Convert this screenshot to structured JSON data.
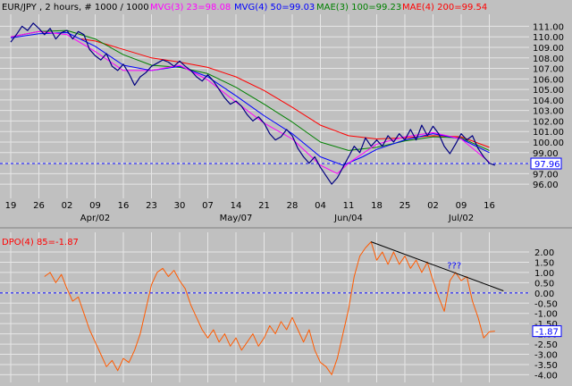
{
  "chart_data": [
    {
      "type": "line",
      "header": {
        "symbol": "EUR/JPY , 2 hours, # 1000 / 1000",
        "indicators": [
          {
            "label": "MVG(3) 23=98.08",
            "color": "#ff00ff"
          },
          {
            "label": "MVG(4) 50=99.03",
            "color": "#0000ff"
          },
          {
            "label": "MAE(3) 100=99.23",
            "color": "#008000"
          },
          {
            "label": "MAE(4) 200=99.54",
            "color": "#ff0000"
          }
        ]
      },
      "ylim": [
        95.5,
        111.8
      ],
      "y_ticks": [
        "96.00",
        "97.00",
        "98.00",
        "99.00",
        "100.00",
        "101.00",
        "102.00",
        "103.00",
        "104.00",
        "105.00",
        "106.00",
        "107.00",
        "108.00",
        "109.00",
        "110.00",
        "111.00"
      ],
      "last_value": "97.96",
      "last_value_num": 97.96,
      "x_ticks": [
        "19",
        "26",
        "02",
        "09",
        "16",
        "23",
        "30",
        "07",
        "14",
        "21",
        "28",
        "04",
        "11",
        "18",
        "25",
        "02",
        "09",
        "16"
      ],
      "month_labels": [
        {
          "label": "Apr/02",
          "at": 3
        },
        {
          "label": "May/07",
          "at": 8
        },
        {
          "label": "Jun/04",
          "at": 12
        },
        {
          "label": "Jul/02",
          "at": 16
        }
      ],
      "price_points": [
        [
          0,
          109.5
        ],
        [
          0.2,
          110.2
        ],
        [
          0.4,
          111.0
        ],
        [
          0.6,
          110.6
        ],
        [
          0.8,
          111.3
        ],
        [
          1.0,
          110.8
        ],
        [
          1.2,
          110.2
        ],
        [
          1.4,
          110.8
        ],
        [
          1.6,
          109.8
        ],
        [
          1.8,
          110.4
        ],
        [
          2.0,
          110.6
        ],
        [
          2.2,
          109.8
        ],
        [
          2.4,
          110.5
        ],
        [
          2.6,
          110.2
        ],
        [
          2.8,
          108.8
        ],
        [
          3.0,
          108.2
        ],
        [
          3.2,
          107.8
        ],
        [
          3.4,
          108.4
        ],
        [
          3.6,
          107.2
        ],
        [
          3.8,
          106.8
        ],
        [
          4.0,
          107.4
        ],
        [
          4.2,
          106.5
        ],
        [
          4.4,
          105.4
        ],
        [
          4.6,
          106.2
        ],
        [
          4.8,
          106.6
        ],
        [
          5.0,
          107.2
        ],
        [
          5.2,
          107.5
        ],
        [
          5.4,
          107.8
        ],
        [
          5.6,
          107.6
        ],
        [
          5.8,
          107.2
        ],
        [
          6.0,
          107.7
        ],
        [
          6.2,
          107.2
        ],
        [
          6.4,
          106.8
        ],
        [
          6.6,
          106.2
        ],
        [
          6.8,
          105.8
        ],
        [
          7.0,
          106.4
        ],
        [
          7.2,
          105.8
        ],
        [
          7.4,
          105.0
        ],
        [
          7.6,
          104.2
        ],
        [
          7.8,
          103.6
        ],
        [
          8.0,
          103.9
        ],
        [
          8.2,
          103.4
        ],
        [
          8.4,
          102.6
        ],
        [
          8.6,
          102.0
        ],
        [
          8.8,
          102.4
        ],
        [
          9.0,
          101.8
        ],
        [
          9.2,
          100.8
        ],
        [
          9.4,
          100.2
        ],
        [
          9.6,
          100.5
        ],
        [
          9.8,
          101.2
        ],
        [
          10.0,
          100.6
        ],
        [
          10.2,
          99.4
        ],
        [
          10.4,
          98.6
        ],
        [
          10.6,
          98.0
        ],
        [
          10.8,
          98.6
        ],
        [
          11.0,
          97.6
        ],
        [
          11.2,
          96.8
        ],
        [
          11.4,
          96.0
        ],
        [
          11.6,
          96.6
        ],
        [
          11.8,
          97.6
        ],
        [
          12.0,
          98.6
        ],
        [
          12.2,
          99.6
        ],
        [
          12.4,
          99.0
        ],
        [
          12.6,
          100.4
        ],
        [
          12.8,
          99.6
        ],
        [
          13.0,
          100.2
        ],
        [
          13.2,
          99.6
        ],
        [
          13.4,
          100.6
        ],
        [
          13.6,
          100.0
        ],
        [
          13.8,
          100.8
        ],
        [
          14.0,
          100.2
        ],
        [
          14.2,
          101.2
        ],
        [
          14.4,
          100.2
        ],
        [
          14.6,
          101.6
        ],
        [
          14.8,
          100.6
        ],
        [
          15.0,
          101.5
        ],
        [
          15.2,
          100.8
        ],
        [
          15.4,
          99.6
        ],
        [
          15.6,
          98.9
        ],
        [
          15.8,
          99.8
        ],
        [
          16.0,
          100.8
        ],
        [
          16.2,
          100.2
        ],
        [
          16.4,
          100.6
        ],
        [
          16.6,
          99.4
        ],
        [
          16.8,
          98.6
        ],
        [
          17.0,
          98.0
        ],
        [
          17.2,
          97.8
        ]
      ],
      "mvg3": [
        [
          0,
          110.0
        ],
        [
          1,
          110.5
        ],
        [
          2,
          110.2
        ],
        [
          3,
          108.6
        ],
        [
          4,
          106.8
        ],
        [
          5,
          106.8
        ],
        [
          6,
          107.3
        ],
        [
          7,
          105.9
        ],
        [
          8,
          103.8
        ],
        [
          9,
          101.8
        ],
        [
          10,
          100.3
        ],
        [
          11,
          97.8
        ],
        [
          11.6,
          97.0
        ],
        [
          12,
          98.0
        ],
        [
          13,
          99.8
        ],
        [
          14,
          100.5
        ],
        [
          15,
          100.9
        ],
        [
          16,
          100.3
        ],
        [
          17,
          98.1
        ]
      ],
      "mvg4": [
        [
          0,
          109.9
        ],
        [
          1,
          110.3
        ],
        [
          2,
          110.4
        ],
        [
          3,
          109.1
        ],
        [
          4,
          107.3
        ],
        [
          5,
          106.8
        ],
        [
          6,
          107.2
        ],
        [
          7,
          106.2
        ],
        [
          8,
          104.4
        ],
        [
          9,
          102.5
        ],
        [
          10,
          100.8
        ],
        [
          11,
          98.6
        ],
        [
          11.8,
          97.8
        ],
        [
          12.5,
          98.6
        ],
        [
          13,
          99.3
        ],
        [
          14,
          100.2
        ],
        [
          15,
          100.8
        ],
        [
          16,
          100.3
        ],
        [
          17,
          99.0
        ]
      ],
      "mae3": [
        [
          0,
          110.0
        ],
        [
          1,
          110.5
        ],
        [
          2,
          110.6
        ],
        [
          3,
          109.8
        ],
        [
          4,
          108.3
        ],
        [
          5,
          107.3
        ],
        [
          6,
          107.1
        ],
        [
          7,
          106.5
        ],
        [
          8,
          105.2
        ],
        [
          9,
          103.6
        ],
        [
          10,
          101.9
        ],
        [
          11,
          100.0
        ],
        [
          12,
          99.2
        ],
        [
          13,
          99.5
        ],
        [
          14,
          100.1
        ],
        [
          15,
          100.5
        ],
        [
          16,
          100.4
        ],
        [
          17,
          99.2
        ]
      ],
      "mae4": [
        [
          2.5,
          109.8
        ],
        [
          3,
          109.6
        ],
        [
          4,
          108.8
        ],
        [
          5,
          108.0
        ],
        [
          6,
          107.6
        ],
        [
          7,
          107.1
        ],
        [
          8,
          106.2
        ],
        [
          9,
          104.9
        ],
        [
          10,
          103.3
        ],
        [
          11,
          101.6
        ],
        [
          12,
          100.6
        ],
        [
          13,
          100.3
        ],
        [
          14,
          100.4
        ],
        [
          15,
          100.6
        ],
        [
          16,
          100.5
        ],
        [
          17,
          99.5
        ]
      ]
    },
    {
      "type": "line",
      "header": {
        "label": "DPO(4) 85=-1.87",
        "color": "#ff0000"
      },
      "ylim": [
        -4.2,
        2.7
      ],
      "y_ticks": [
        "2.00",
        "1.50",
        "1.00",
        "0.50",
        "0.00",
        "-0.50",
        "-1.00",
        "-1.50",
        "-2.00",
        "-2.50",
        "-3.00",
        "-3.50",
        "-4.00"
      ],
      "last_value": "-1.87",
      "last_value_num": -1.87,
      "annotation": "???",
      "annotation_pos": {
        "x": 15.5,
        "y": 1.2
      },
      "trendline": [
        [
          12.8,
          2.5
        ],
        [
          17.5,
          0.1
        ]
      ],
      "dpo_points": [
        [
          1.2,
          0.8
        ],
        [
          1.4,
          1.0
        ],
        [
          1.6,
          0.5
        ],
        [
          1.8,
          0.9
        ],
        [
          2.0,
          0.2
        ],
        [
          2.2,
          -0.4
        ],
        [
          2.4,
          -0.2
        ],
        [
          2.6,
          -1.0
        ],
        [
          2.8,
          -1.8
        ],
        [
          3.0,
          -2.4
        ],
        [
          3.2,
          -3.0
        ],
        [
          3.4,
          -3.6
        ],
        [
          3.6,
          -3.3
        ],
        [
          3.8,
          -3.8
        ],
        [
          4.0,
          -3.2
        ],
        [
          4.2,
          -3.4
        ],
        [
          4.4,
          -2.8
        ],
        [
          4.6,
          -2.0
        ],
        [
          4.8,
          -0.8
        ],
        [
          5.0,
          0.4
        ],
        [
          5.2,
          1.0
        ],
        [
          5.4,
          1.2
        ],
        [
          5.6,
          0.8
        ],
        [
          5.8,
          1.1
        ],
        [
          6.0,
          0.6
        ],
        [
          6.2,
          0.2
        ],
        [
          6.4,
          -0.6
        ],
        [
          6.6,
          -1.2
        ],
        [
          6.8,
          -1.8
        ],
        [
          7.0,
          -2.2
        ],
        [
          7.2,
          -1.8
        ],
        [
          7.4,
          -2.4
        ],
        [
          7.6,
          -2.0
        ],
        [
          7.8,
          -2.6
        ],
        [
          8.0,
          -2.2
        ],
        [
          8.2,
          -2.8
        ],
        [
          8.4,
          -2.4
        ],
        [
          8.6,
          -2.0
        ],
        [
          8.8,
          -2.6
        ],
        [
          9.0,
          -2.2
        ],
        [
          9.2,
          -1.6
        ],
        [
          9.4,
          -2.0
        ],
        [
          9.6,
          -1.4
        ],
        [
          9.8,
          -1.8
        ],
        [
          10.0,
          -1.2
        ],
        [
          10.2,
          -1.8
        ],
        [
          10.4,
          -2.4
        ],
        [
          10.6,
          -1.8
        ],
        [
          10.8,
          -2.8
        ],
        [
          11.0,
          -3.4
        ],
        [
          11.2,
          -3.6
        ],
        [
          11.4,
          -4.0
        ],
        [
          11.6,
          -3.2
        ],
        [
          11.8,
          -2.0
        ],
        [
          12.0,
          -0.8
        ],
        [
          12.2,
          0.8
        ],
        [
          12.4,
          1.8
        ],
        [
          12.6,
          2.2
        ],
        [
          12.8,
          2.5
        ],
        [
          13.0,
          1.6
        ],
        [
          13.2,
          2.0
        ],
        [
          13.4,
          1.4
        ],
        [
          13.6,
          2.0
        ],
        [
          13.8,
          1.4
        ],
        [
          14.0,
          1.8
        ],
        [
          14.2,
          1.2
        ],
        [
          14.4,
          1.6
        ],
        [
          14.6,
          1.0
        ],
        [
          14.8,
          1.5
        ],
        [
          15.0,
          0.6
        ],
        [
          15.2,
          -0.2
        ],
        [
          15.4,
          -0.9
        ],
        [
          15.6,
          0.6
        ],
        [
          15.8,
          1.0
        ],
        [
          16.0,
          0.6
        ],
        [
          16.2,
          0.8
        ],
        [
          16.4,
          -0.4
        ],
        [
          16.6,
          -1.2
        ],
        [
          16.8,
          -2.2
        ],
        [
          17.0,
          -1.9
        ],
        [
          17.2,
          -1.87
        ]
      ]
    }
  ],
  "colors": {
    "background": "#c0c0c0",
    "grid": "#e6e6e6",
    "price": "#000080",
    "mvg3": "#ff00ff",
    "mvg4": "#0000ff",
    "mae3": "#008000",
    "mae4": "#ff0000",
    "dpo": "#ff5a00",
    "trendline": "#000000",
    "last_marker": "#0000ff",
    "zero_line": "#0000ff"
  }
}
